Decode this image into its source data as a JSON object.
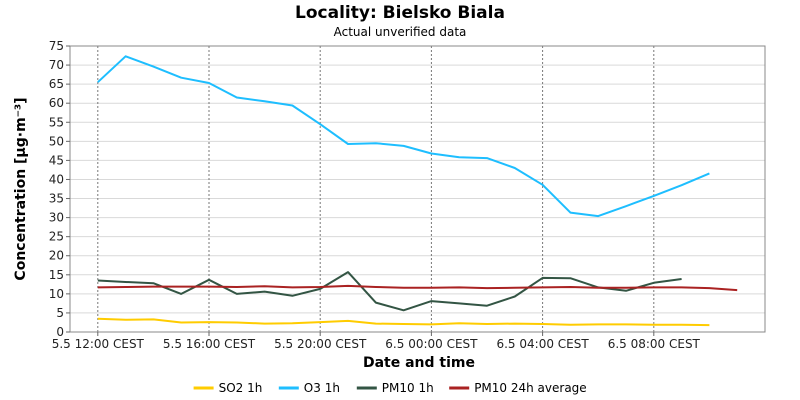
{
  "chart_data": {
    "type": "line",
    "title": "Locality: Bielsko Biala",
    "subtitle": "Actual unverified data",
    "xlabel": "Date and time",
    "ylabel": "Concentration [µg·m⁻³]",
    "ylim": [
      0,
      75
    ],
    "y_ticks": [
      0,
      5,
      10,
      15,
      20,
      25,
      30,
      35,
      40,
      45,
      50,
      55,
      60,
      65,
      70,
      75
    ],
    "x_ticks": [
      {
        "hour": 0,
        "label": "5.5 12:00 CEST"
      },
      {
        "hour": 4,
        "label": "5.5 16:00 CEST"
      },
      {
        "hour": 8,
        "label": "5.5 20:00 CEST"
      },
      {
        "hour": 12,
        "label": "6.5 00:00 CEST"
      },
      {
        "hour": 16,
        "label": "6.5 04:00 CEST"
      },
      {
        "hour": 20,
        "label": "6.5 08:00 CEST"
      }
    ],
    "x_range": [
      -1,
      24
    ],
    "grid": true,
    "legend_position": "bottom",
    "series": [
      {
        "name": "SO2 1h",
        "color": "#ffcc00",
        "x": [
          0,
          1,
          2,
          3,
          4,
          5,
          6,
          7,
          8,
          9,
          10,
          11,
          12,
          13,
          14,
          15,
          16,
          17,
          18,
          19,
          20,
          21,
          22
        ],
        "values": [
          3.5,
          3.2,
          3.3,
          2.5,
          2.6,
          2.5,
          2.2,
          2.3,
          2.6,
          2.9,
          2.2,
          2.1,
          2.0,
          2.3,
          2.1,
          2.2,
          2.1,
          1.9,
          2.0,
          2.0,
          1.9,
          1.9,
          1.8
        ]
      },
      {
        "name": "O3 1h",
        "color": "#1ebeff",
        "x": [
          0,
          1,
          2,
          3,
          4,
          5,
          6,
          7,
          8,
          9,
          10,
          11,
          12,
          13,
          14,
          15,
          16,
          17,
          18,
          19,
          20,
          21,
          22
        ],
        "values": [
          65.5,
          72.3,
          69.6,
          66.7,
          65.3,
          61.5,
          60.5,
          59.4,
          54.5,
          49.3,
          49.5,
          48.8,
          46.8,
          45.8,
          45.6,
          43.0,
          38.6,
          31.3,
          30.4,
          33.0,
          35.7,
          38.5,
          41.6
        ]
      },
      {
        "name": "PM10 1h",
        "color": "#335544",
        "x": [
          0,
          1,
          2,
          3,
          4,
          5,
          6,
          7,
          8,
          9,
          10,
          11,
          12,
          13,
          14,
          15,
          16,
          17,
          18,
          19,
          20,
          21
        ],
        "values": [
          13.5,
          13.1,
          12.8,
          10.0,
          13.7,
          10.0,
          10.6,
          9.5,
          11.3,
          15.7,
          7.7,
          5.7,
          8.1,
          7.5,
          6.9,
          9.3,
          14.2,
          14.1,
          11.7,
          10.8,
          12.9,
          13.9
        ]
      },
      {
        "name": "PM10 24h average",
        "color": "#aa2222",
        "x": [
          0,
          1,
          2,
          3,
          4,
          5,
          6,
          7,
          8,
          9,
          10,
          11,
          12,
          13,
          14,
          15,
          16,
          17,
          18,
          19,
          20,
          21,
          22,
          23
        ],
        "values": [
          11.7,
          11.8,
          11.9,
          11.9,
          11.9,
          11.8,
          12.0,
          11.7,
          11.8,
          12.1,
          11.8,
          11.6,
          11.6,
          11.7,
          11.5,
          11.6,
          11.7,
          11.8,
          11.6,
          11.6,
          11.7,
          11.7,
          11.5,
          11.0
        ]
      }
    ]
  }
}
